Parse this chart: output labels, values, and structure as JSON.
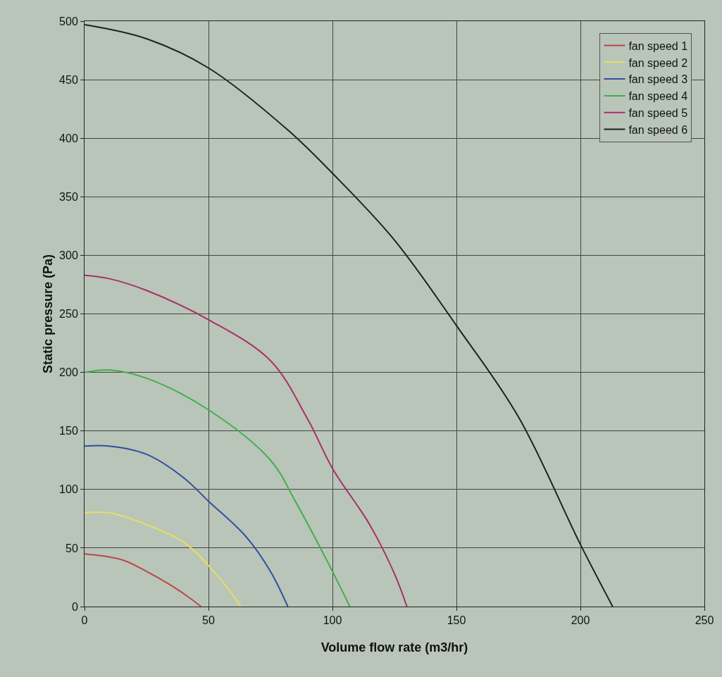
{
  "chart_data": {
    "type": "line",
    "xlabel": "Volume flow rate (m3/hr)",
    "ylabel": "Static pressure (Pa)",
    "xlim": [
      0,
      250
    ],
    "xticks": [
      0,
      50,
      100,
      150,
      200,
      250
    ],
    "ylim": [
      0,
      500
    ],
    "yticks": [
      0,
      50,
      100,
      150,
      200,
      250,
      300,
      350,
      400,
      450,
      500
    ],
    "grid": true,
    "legend": "top right",
    "marker": "none",
    "line_style": "solid",
    "series": [
      {
        "name": "fan speed 1",
        "color": "#b84a45",
        "x": [
          0,
          15,
          25,
          35,
          42,
          47
        ],
        "values": [
          45,
          40,
          30,
          18,
          8,
          0
        ]
      },
      {
        "name": "fan speed 2",
        "color": "#e6de62",
        "x": [
          0,
          10,
          25,
          40,
          50,
          58,
          63
        ],
        "values": [
          80,
          80,
          70,
          55,
          35,
          15,
          0
        ]
      },
      {
        "name": "fan speed 3",
        "color": "#3050a0",
        "x": [
          0,
          10,
          25,
          40,
          50,
          65,
          75,
          82
        ],
        "values": [
          137,
          137,
          130,
          110,
          90,
          60,
          30,
          0
        ]
      },
      {
        "name": "fan speed 4",
        "color": "#40b048",
        "x": [
          0,
          10,
          25,
          50,
          75,
          85,
          100,
          107
        ],
        "values": [
          200,
          202,
          195,
          168,
          125,
          90,
          30,
          0
        ]
      },
      {
        "name": "fan speed 5",
        "color": "#a8306a",
        "x": [
          0,
          10,
          25,
          50,
          75,
          90,
          100,
          115,
          125,
          130
        ],
        "values": [
          283,
          280,
          270,
          245,
          210,
          160,
          118,
          70,
          28,
          0
        ]
      },
      {
        "name": "fan speed 6",
        "color": "#202020",
        "x": [
          0,
          25,
          50,
          82,
          100,
          125,
          150,
          175,
          200,
          213
        ],
        "values": [
          497,
          485,
          460,
          407,
          370,
          313,
          240,
          162,
          53,
          0
        ]
      }
    ]
  }
}
